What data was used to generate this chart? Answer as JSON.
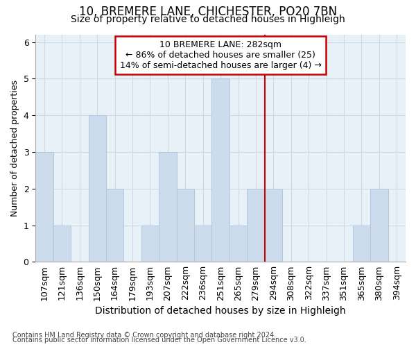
{
  "title1": "10, BREMERE LANE, CHICHESTER, PO20 7BN",
  "title2": "Size of property relative to detached houses in Highleigh",
  "xlabel": "Distribution of detached houses by size in Highleigh",
  "ylabel": "Number of detached properties",
  "footnote1": "Contains HM Land Registry data © Crown copyright and database right 2024.",
  "footnote2": "Contains public sector information licensed under the Open Government Licence v3.0.",
  "bin_labels": [
    "107sqm",
    "121sqm",
    "136sqm",
    "150sqm",
    "164sqm",
    "179sqm",
    "193sqm",
    "207sqm",
    "222sqm",
    "236sqm",
    "251sqm",
    "265sqm",
    "279sqm",
    "294sqm",
    "308sqm",
    "322sqm",
    "337sqm",
    "351sqm",
    "365sqm",
    "380sqm",
    "394sqm"
  ],
  "bar_values": [
    3,
    1,
    0,
    4,
    2,
    0,
    1,
    3,
    2,
    1,
    5,
    1,
    2,
    2,
    0,
    0,
    0,
    0,
    1,
    2,
    0
  ],
  "bar_color": "#ccdcec",
  "bar_edgecolor": "#b0c8dc",
  "grid_color": "#d0d8e0",
  "vline_x_idx": 12.5,
  "vline_color": "#cc0000",
  "annotation_text": "10 BREMERE LANE: 282sqm\n← 86% of detached houses are smaller (25)\n14% of semi-detached houses are larger (4) →",
  "annotation_box_color": "#cc0000",
  "ylim": [
    0,
    6.2
  ],
  "yticks": [
    0,
    1,
    2,
    3,
    4,
    5,
    6
  ],
  "title1_fontsize": 12,
  "title2_fontsize": 10,
  "xlabel_fontsize": 10,
  "ylabel_fontsize": 9,
  "tick_fontsize": 9,
  "annot_fontsize": 9,
  "footnote_fontsize": 7
}
